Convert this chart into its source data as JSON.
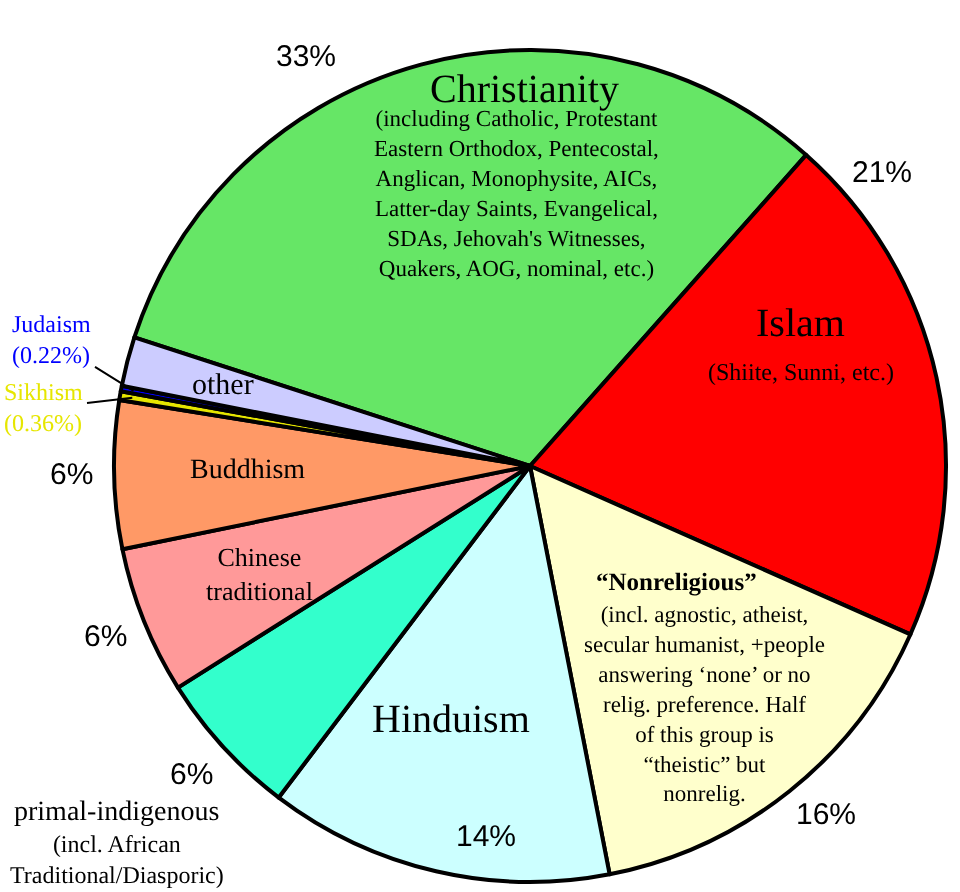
{
  "chart_data": {
    "type": "pie",
    "categories": [
      "Christianity\n(including Catholic, Protestant\nEastern Orthodox, Pentecostal,\nAnglican, Monophysite, AICs,\nLatter-day Saints, Evangelical,\nSDAs, Jehovah's Witnesses,\nQuakers, AOG, nominal, etc.)",
      "Islam\n(Shiite, Sunni, etc.)",
      "“Nonreligious”\n(incl. agnostic, atheist,\nsecular humanist, +people\nanswering ‘none’ or no\nrelig. preference. Half\nof this group is\n“theistic” but\nnonrelig.",
      "Hinduism",
      "primal-indigenous\n(incl. African\nTraditional/Diasporic)",
      "Chinese\ntraditional",
      "Buddhism",
      "Sikhism",
      "Judaism",
      "other"
    ],
    "values": [
      33,
      21,
      16,
      14,
      6,
      6,
      6,
      0.36,
      0.22,
      2
    ],
    "value_labels": [
      "33%",
      "21%",
      "16%",
      "14%",
      "6%",
      "6%",
      "6%",
      "(0.36%)",
      "(0.22%)",
      null
    ],
    "colors": [
      "#66e666",
      "#ff0000",
      "#ffffcc",
      "#ccffff",
      "#33ffcc",
      "#ff9999",
      "#ff9966",
      "#e6e600",
      "#0000ff",
      "#ccccff"
    ],
    "legend": false
  }
}
